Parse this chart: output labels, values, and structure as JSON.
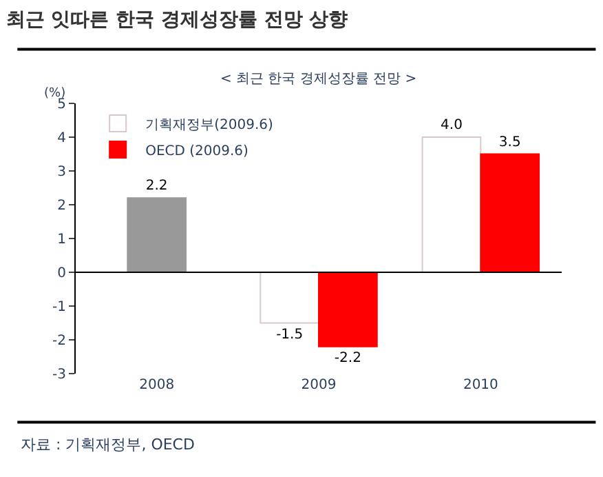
{
  "chart_data": {
    "type": "bar",
    "title": "최근 잇따른 한국 경제성장률 전망 상향",
    "subtitle": "< 최근 한국 경제성장률 전망 >",
    "ylabel": "(%)",
    "categories": [
      "2008",
      "2009",
      "2010"
    ],
    "series": [
      {
        "color": "#999999",
        "values": [
          2.2,
          null,
          null
        ],
        "value_labels": [
          "2.2",
          null,
          null
        ]
      },
      {
        "name": "기획재정부(2009.6)",
        "color": "#ffffff",
        "values": [
          null,
          -1.5,
          4.0
        ],
        "value_labels": [
          null,
          "-1.5",
          "4.0"
        ]
      },
      {
        "name": "OECD (2009.6)",
        "color": "#ff0000",
        "values": [
          null,
          -2.2,
          3.5
        ],
        "value_labels": [
          null,
          "-2.2",
          "3.5"
        ]
      }
    ],
    "ref_lines": [
      {
        "axis": "y",
        "value": 0,
        "color": "#000000"
      }
    ],
    "ylim": [
      -3,
      5
    ],
    "yticks": [
      -3,
      -2,
      -1,
      0,
      1,
      2,
      3,
      4,
      5
    ],
    "grid": false,
    "legend": "top left",
    "annotations": [
      "자료 : 기획재정부, OECD"
    ]
  }
}
